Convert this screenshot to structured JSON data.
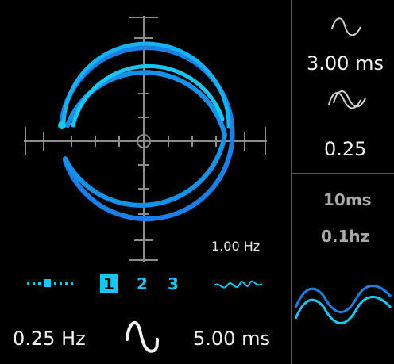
{
  "main_display": {
    "rate_readout": "1.00 Hz"
  },
  "voices": {
    "items": [
      {
        "label": "1",
        "selected": true
      },
      {
        "label": "2",
        "selected": false
      },
      {
        "label": "3",
        "selected": false
      }
    ]
  },
  "bottom": {
    "rate_value": "0.25 Hz",
    "time_value": "5.00 ms",
    "mod_shape_icon": "sine-wave-icon",
    "spread_icon": "dotted-slider-icon",
    "wobble_icon": "wobble-wave-icon"
  },
  "right_top": {
    "delay_icon": "single-sine-icon",
    "delay_value": "3.00 ms",
    "width_icon": "double-sine-icon",
    "width_value": "0.25"
  },
  "right_bottom": {
    "time_value": "10ms",
    "rate_value": "0.1hz",
    "preview_icon": "dual-wave-preview-icon"
  },
  "colors": {
    "accent": "#19c6f0",
    "accent_dark": "#1a7fe6",
    "background": "#000000",
    "divider": "#5a5a5a",
    "inactive_text": "#a9a9a9"
  }
}
